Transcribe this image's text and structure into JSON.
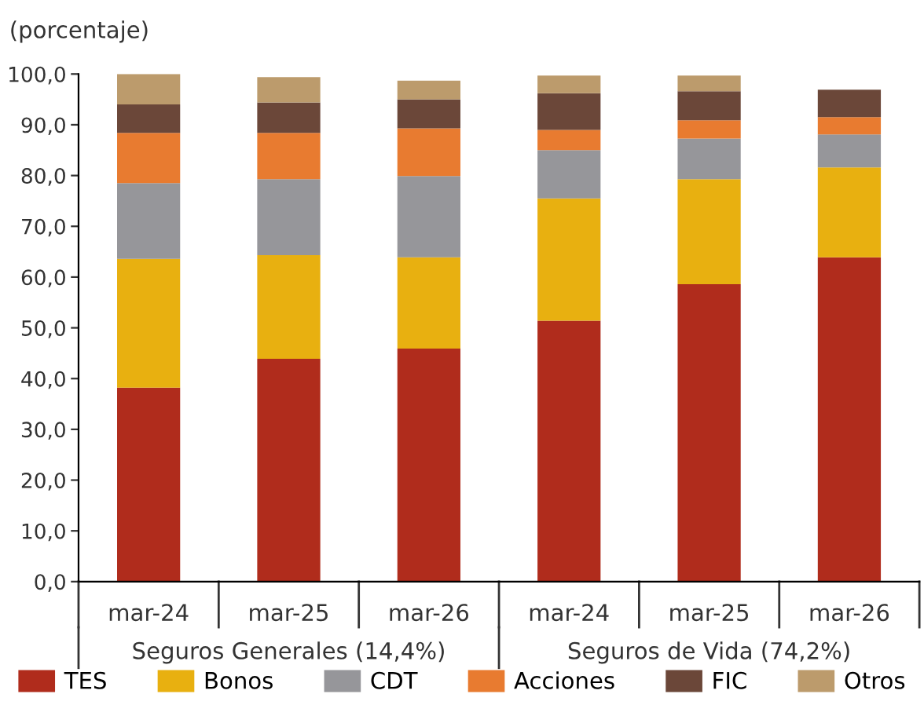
{
  "chart_data": {
    "type": "bar",
    "stacked": true,
    "ylabel": "(porcentaje)",
    "categories": [
      "mar-24",
      "mar-25",
      "mar-26",
      "mar-24",
      "mar-25",
      "mar-26"
    ],
    "series": [
      {
        "name": "TES",
        "color": "#b02c1c",
        "values": [
          38.2,
          43.9,
          45.9,
          51.4,
          58.6,
          63.9
        ]
      },
      {
        "name": "Bonos",
        "color": "#e8b010",
        "values": [
          25.4,
          20.4,
          18.0,
          24.1,
          20.7,
          17.7
        ]
      },
      {
        "name": "CDT",
        "color": "#96969a",
        "values": [
          14.9,
          15.0,
          16.0,
          9.5,
          8.0,
          6.5
        ]
      },
      {
        "name": "Acciones",
        "color": "#e87b30",
        "values": [
          9.9,
          9.1,
          9.4,
          4.0,
          3.6,
          3.4
        ]
      },
      {
        "name": "FIC",
        "color": "#6b4739",
        "values": [
          5.6,
          6.0,
          5.7,
          7.2,
          5.7,
          5.4
        ]
      },
      {
        "name": "Otros",
        "color": "#bc9b6c",
        "values": [
          6.0,
          5.0,
          3.7,
          3.5,
          3.1,
          null
        ]
      }
    ],
    "ylim": [
      0,
      100
    ],
    "yticks": [
      {
        "value": 0,
        "label": "0,0"
      },
      {
        "value": 10,
        "label": "10,0"
      },
      {
        "value": 20,
        "label": "20,0"
      },
      {
        "value": 30,
        "label": "30,0"
      },
      {
        "value": 40,
        "label": "40,0"
      },
      {
        "value": 50,
        "label": "50,0"
      },
      {
        "value": 60,
        "label": "60,0"
      },
      {
        "value": 70,
        "label": "70,0"
      },
      {
        "value": 80,
        "label": "80,0"
      },
      {
        "value": 90,
        "label": "90,0"
      },
      {
        "value": 100,
        "label": "100,0"
      }
    ],
    "annotations": [
      "Seguros Generales (14,4%)",
      "Seguros de Vida (74,2%)"
    ],
    "legend": "bottom",
    "grid": false
  }
}
